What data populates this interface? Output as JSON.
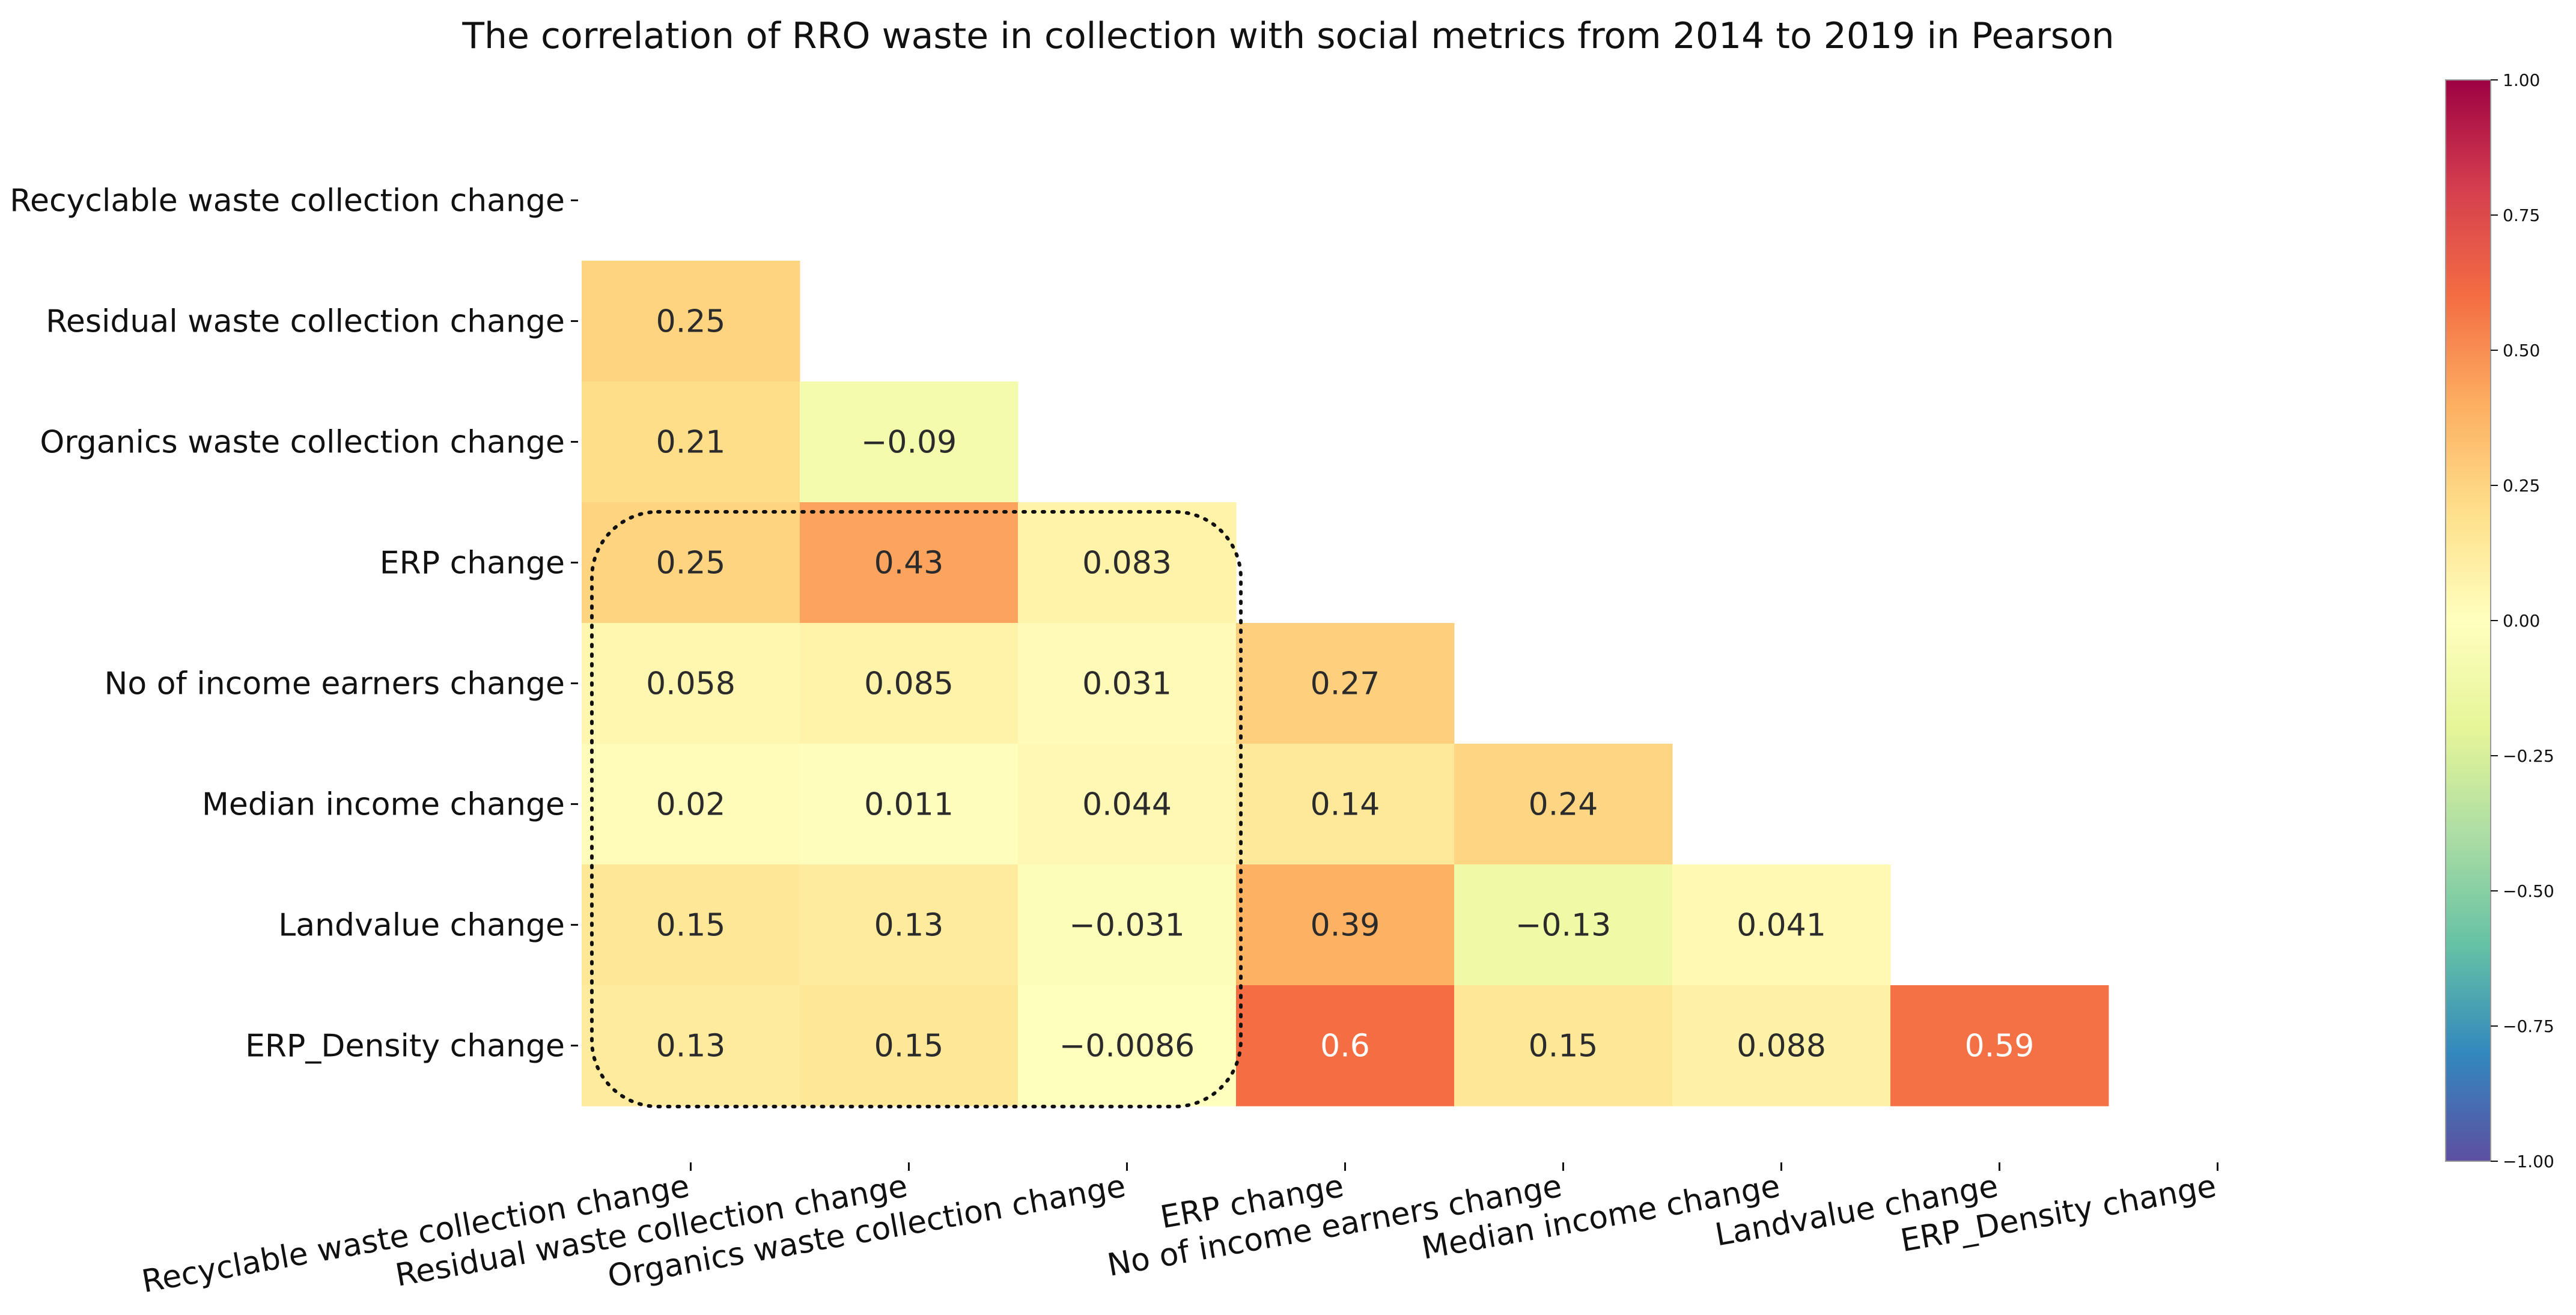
{
  "chart_data": {
    "type": "heatmap",
    "title": "The correlation of RRO waste in collection with social metrics from 2014 to 2019 in Pearson",
    "row_labels": [
      "Recyclable waste collection change",
      "Residual  waste collection change",
      "Organics waste collection change",
      "ERP change",
      "No of income earners change",
      "Median income change",
      "Landvalue change",
      "ERP_Density change"
    ],
    "col_labels": [
      "Recyclable waste collection change",
      "Residual  waste collection change",
      "Organics waste collection change",
      "ERP change",
      "No of income earners change",
      "Median income change",
      "Landvalue change",
      "ERP_Density change"
    ],
    "values": [
      [
        null,
        null,
        null,
        null,
        null,
        null,
        null,
        null
      ],
      [
        0.25,
        null,
        null,
        null,
        null,
        null,
        null,
        null
      ],
      [
        0.21,
        -0.09,
        null,
        null,
        null,
        null,
        null,
        null
      ],
      [
        0.25,
        0.43,
        0.083,
        null,
        null,
        null,
        null,
        null
      ],
      [
        0.058,
        0.085,
        0.031,
        0.27,
        null,
        null,
        null,
        null
      ],
      [
        0.02,
        0.011,
        0.044,
        0.14,
        0.24,
        null,
        null,
        null
      ],
      [
        0.15,
        0.13,
        -0.031,
        0.39,
        -0.13,
        0.041,
        null,
        null
      ],
      [
        0.13,
        0.15,
        -0.0086,
        0.6,
        0.15,
        0.088,
        0.59,
        null
      ]
    ],
    "value_labels": [
      [
        null,
        null,
        null,
        null,
        null,
        null,
        null,
        null
      ],
      [
        "0.25",
        null,
        null,
        null,
        null,
        null,
        null,
        null
      ],
      [
        "0.21",
        "−0.09",
        null,
        null,
        null,
        null,
        null,
        null
      ],
      [
        "0.25",
        "0.43",
        "0.083",
        null,
        null,
        null,
        null,
        null
      ],
      [
        "0.058",
        "0.085",
        "0.031",
        "0.27",
        null,
        null,
        null,
        null
      ],
      [
        "0.02",
        "0.011",
        "0.044",
        "0.14",
        "0.24",
        null,
        null,
        null
      ],
      [
        "0.15",
        "0.13",
        "−0.031",
        "0.39",
        "−0.13",
        "0.041",
        null,
        null
      ],
      [
        "0.13",
        "0.15",
        "−0.0086",
        "0.6",
        "0.15",
        "0.088",
        "0.59",
        null
      ]
    ],
    "colormap": "Spectral_r",
    "vmin": -1.0,
    "vmax": 1.0,
    "colorbar_ticks": [
      1.0,
      0.75,
      0.5,
      0.25,
      0.0,
      -0.25,
      -0.5,
      -0.75,
      -1.0
    ],
    "colorbar_tick_labels": [
      "1.00",
      "0.75",
      "0.50",
      "0.25",
      "0.00",
      "−0.25",
      "−0.50",
      "−0.75",
      "−1.00"
    ],
    "annotation": "dotted rounded box highlighting waste columns vs social-metric rows"
  }
}
